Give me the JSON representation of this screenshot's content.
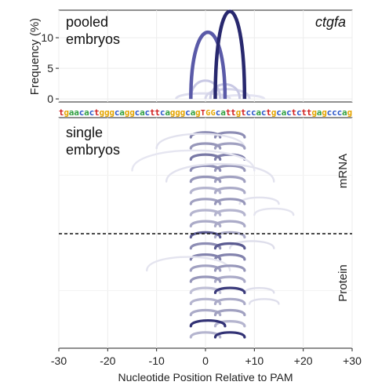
{
  "chart_data": [
    {
      "panel": "pooled",
      "type": "arc",
      "gene": "ctgfa",
      "label_lines": [
        "pooled",
        "embryos"
      ],
      "ylabel": "Frequency (%)",
      "ylim": [
        -0.5,
        14.5
      ],
      "yticks": [
        0,
        5,
        10
      ],
      "xlim": [
        -30,
        30
      ],
      "deletions": [
        {
          "start": -3,
          "end": 4,
          "frequency": 10.9,
          "color": "#5a5aa8",
          "weight": 0.95
        },
        {
          "start": 2,
          "end": 8,
          "frequency": 14.3,
          "color": "#28286e",
          "weight": 1.0
        },
        {
          "start": -3,
          "end": 3,
          "frequency": 3.0,
          "color": "#c8c8e4",
          "weight": 0.3
        },
        {
          "start": 1,
          "end": 7,
          "frequency": 2.4,
          "color": "#c8c8e4",
          "weight": 0.25
        },
        {
          "start": 0,
          "end": 9,
          "frequency": 1.6,
          "color": "#d6d6ea",
          "weight": 0.2
        },
        {
          "start": -6,
          "end": 5,
          "frequency": 0.9,
          "color": "#dedeee",
          "weight": 0.15
        },
        {
          "start": 3,
          "end": 12,
          "frequency": 0.6,
          "color": "#e4e4f2",
          "weight": 0.12
        }
      ]
    },
    {
      "panel": "single",
      "type": "arc",
      "label_lines": [
        "single",
        "embryos"
      ],
      "xlabel": "Nucleotide Position Relative to PAM",
      "xlim": [
        -30,
        30
      ],
      "xticks": [
        -30,
        -20,
        -10,
        0,
        10,
        20,
        30
      ],
      "xtick_labels": [
        "-30",
        "-20",
        "-10",
        "0",
        "+10",
        "+20",
        "+30"
      ],
      "groups": [
        "mRNA",
        "Protein"
      ],
      "rows": [
        {
          "group": "mRNA",
          "arcs": [
            {
              "s": -3,
              "e": 3,
              "w": 0.55
            },
            {
              "s": 2,
              "e": 8,
              "w": 0.5
            }
          ]
        },
        {
          "group": "mRNA",
          "arcs": [
            {
              "s": -3,
              "e": 3,
              "w": 0.45
            },
            {
              "s": 2,
              "e": 8,
              "w": 0.4
            },
            {
              "s": -10,
              "e": 8,
              "w": 0.08
            }
          ]
        },
        {
          "group": "mRNA",
          "arcs": [
            {
              "s": -3,
              "e": 3,
              "w": 0.6
            },
            {
              "s": 2,
              "e": 8,
              "w": 0.55
            }
          ]
        },
        {
          "group": "mRNA",
          "arcs": [
            {
              "s": -3,
              "e": 3,
              "w": 0.5
            },
            {
              "s": 2,
              "e": 8,
              "w": 0.45
            },
            {
              "s": -15,
              "e": 10,
              "w": 0.06
            }
          ]
        },
        {
          "group": "mRNA",
          "arcs": [
            {
              "s": -3,
              "e": 3,
              "w": 0.45
            },
            {
              "s": 2,
              "e": 8,
              "w": 0.4
            },
            {
              "s": -8,
              "e": 14,
              "w": 0.08
            }
          ]
        },
        {
          "group": "mRNA",
          "arcs": [
            {
              "s": -3,
              "e": 3,
              "w": 0.3
            },
            {
              "s": 2,
              "e": 8,
              "w": 0.35
            }
          ]
        },
        {
          "group": "mRNA",
          "arcs": [
            {
              "s": -3,
              "e": 3,
              "w": 0.4
            },
            {
              "s": 2,
              "e": 8,
              "w": 0.45
            },
            {
              "s": 7,
              "e": 15,
              "w": 0.08
            }
          ]
        },
        {
          "group": "mRNA",
          "arcs": [
            {
              "s": -3,
              "e": 3,
              "w": 0.3
            },
            {
              "s": 2,
              "e": 8,
              "w": 0.3
            },
            {
              "s": 10,
              "e": 18,
              "w": 0.07
            }
          ]
        },
        {
          "group": "mRNA",
          "arcs": [
            {
              "s": -3,
              "e": 3,
              "w": 0.35
            },
            {
              "s": 2,
              "e": 8,
              "w": 0.35
            }
          ]
        },
        {
          "group": "Protein",
          "arcs": [
            {
              "s": -3,
              "e": 3,
              "w": 0.75
            },
            {
              "s": 2,
              "e": 8,
              "w": 0.35
            }
          ]
        },
        {
          "group": "Protein",
          "arcs": [
            {
              "s": -3,
              "e": 3,
              "w": 0.5
            },
            {
              "s": 2,
              "e": 8,
              "w": 0.75
            },
            {
              "s": 5,
              "e": 14,
              "w": 0.1
            }
          ]
        },
        {
          "group": "Protein",
          "arcs": [
            {
              "s": -3,
              "e": 3,
              "w": 0.55
            },
            {
              "s": 2,
              "e": 8,
              "w": 0.55
            }
          ]
        },
        {
          "group": "Protein",
          "arcs": [
            {
              "s": -3,
              "e": 3,
              "w": 0.4
            },
            {
              "s": 2,
              "e": 8,
              "w": 0.45
            },
            {
              "s": -12,
              "e": 5,
              "w": 0.07
            }
          ]
        },
        {
          "group": "Protein",
          "arcs": [
            {
              "s": -3,
              "e": 3,
              "w": 0.45
            },
            {
              "s": 2,
              "e": 8,
              "w": 0.35
            }
          ]
        },
        {
          "group": "Protein",
          "arcs": [
            {
              "s": -3,
              "e": 3,
              "w": 0.25
            },
            {
              "s": 2,
              "e": 8,
              "w": 0.9
            },
            {
              "s": 8,
              "e": 14,
              "w": 0.1
            }
          ]
        },
        {
          "group": "Protein",
          "arcs": [
            {
              "s": -3,
              "e": 3,
              "w": 0.3
            },
            {
              "s": 2,
              "e": 8,
              "w": 0.35
            },
            {
              "s": 9,
              "e": 15,
              "w": 0.1
            }
          ]
        },
        {
          "group": "Protein",
          "arcs": [
            {
              "s": -3,
              "e": 3,
              "w": 0.35
            },
            {
              "s": 2,
              "e": 8,
              "w": 0.4
            }
          ]
        },
        {
          "group": "Protein",
          "arcs": [
            {
              "s": -3,
              "e": 4,
              "w": 0.95
            },
            {
              "s": 2,
              "e": 8,
              "w": 0.3
            }
          ]
        },
        {
          "group": "Protein",
          "arcs": [
            {
              "s": -3,
              "e": 3,
              "w": 0.3
            },
            {
              "s": 2,
              "e": 8,
              "w": 0.95
            }
          ]
        }
      ]
    }
  ],
  "sequence": {
    "letters": "tgaacactgggcaggcacttcagggcagTGGcattgtccactgcactcttgagcccag",
    "colors": {
      "a": "#2e9e3e",
      "c": "#2a55c8",
      "g": "#e4a400",
      "t": "#d02020",
      "A": "#2e9e3e",
      "C": "#2a55c8",
      "G": "#e4a400",
      "T": "#d02020"
    },
    "pam_color": "#e4a400"
  },
  "colors": {
    "dark_arc": "#28286e",
    "mid_arc": "#5a5aa8",
    "grid": "#ececec"
  }
}
